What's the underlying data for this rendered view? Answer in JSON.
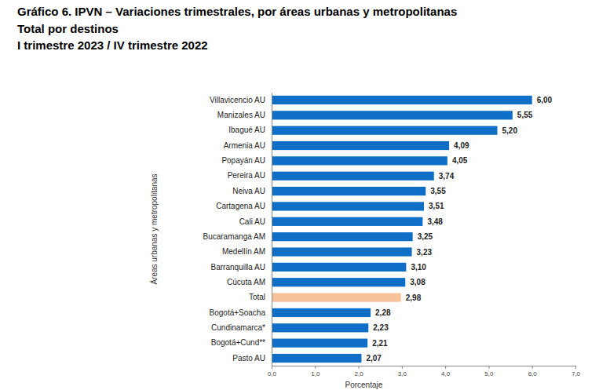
{
  "chart_data": {
    "type": "bar",
    "orientation": "horizontal",
    "title": "Gráfico 6. IPVN – Variaciones trimestrales, por áreas urbanas y metropolitanas",
    "subtitle": [
      "Total por destinos",
      "I trimestre 2023 / IV trimestre 2022"
    ],
    "y_label": "Áreas urbanas y metropolitanas",
    "x_label": "Porcentaje",
    "categories": [
      "Villavicencio AU",
      "Manizales AU",
      "Ibagué AU",
      "Armenia AU",
      "Popayán AU",
      "Pereira AU",
      "Neiva AU",
      "Cartagena AU",
      "Cali AU",
      "Bucaramanga AM",
      "Medellín AM",
      "Barranquilla AU",
      "Cúcuta AM",
      "Total",
      "Bogotá+Soacha",
      "Cundinamarca*",
      "Bogotá+Cund**",
      "Pasto AU"
    ],
    "values": [
      6.0,
      5.55,
      5.2,
      4.09,
      4.05,
      3.74,
      3.55,
      3.51,
      3.48,
      3.25,
      3.23,
      3.1,
      3.08,
      2.98,
      2.28,
      2.23,
      2.21,
      2.07
    ],
    "value_labels": [
      "6,00",
      "5,55",
      "5,20",
      "4,09",
      "4,05",
      "3,74",
      "3,55",
      "3,51",
      "3,48",
      "3,25",
      "3,23",
      "3,10",
      "3,08",
      "2,98",
      "2,28",
      "2,23",
      "2,21",
      "2,07"
    ],
    "colors": [
      "#0F6FC6",
      "#0F6FC6",
      "#0F6FC6",
      "#0F6FC6",
      "#0F6FC6",
      "#0F6FC6",
      "#0F6FC6",
      "#0F6FC6",
      "#0F6FC6",
      "#0F6FC6",
      "#0F6FC6",
      "#0F6FC6",
      "#0F6FC6",
      "#F5C29A",
      "#0F6FC6",
      "#0F6FC6",
      "#0F6FC6",
      "#0F6FC6"
    ],
    "xlim": [
      0,
      7
    ],
    "xticks": [
      {
        "value": 0,
        "label": "0,0"
      },
      {
        "value": 1,
        "label": "1,0"
      },
      {
        "value": 2,
        "label": "2,0"
      },
      {
        "value": 3,
        "label": "3,0"
      },
      {
        "value": 4,
        "label": "4,0"
      },
      {
        "value": 5,
        "label": "5,0"
      },
      {
        "value": 6,
        "label": "6,0"
      },
      {
        "value": 7,
        "label": "7,0"
      }
    ],
    "grid": false,
    "data_labels": true
  }
}
